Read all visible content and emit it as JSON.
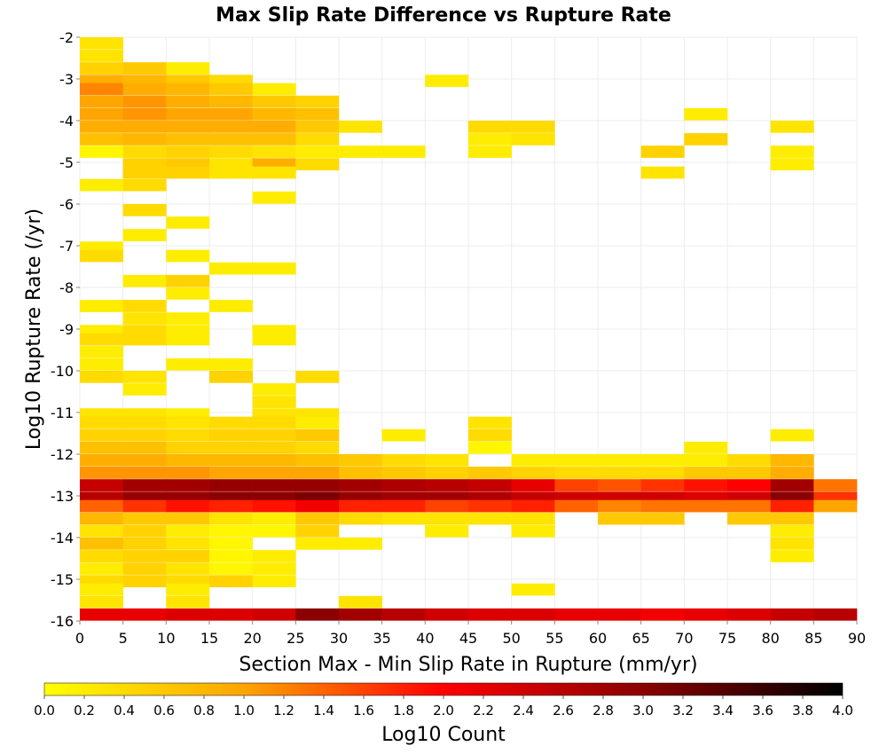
{
  "chart_data": {
    "type": "heatmap",
    "title": "Max Slip Rate Difference vs Rupture Rate",
    "xlabel": "Section Max - Min Slip Rate in Rupture (mm/yr)",
    "ylabel": "Log10 Rupture Rate (/yr)",
    "xlim": [
      0,
      90
    ],
    "ylim": [
      -16,
      -2
    ],
    "x_ticks": [
      "0",
      "5",
      "10",
      "15",
      "20",
      "25",
      "30",
      "35",
      "40",
      "45",
      "50",
      "55",
      "60",
      "65",
      "70",
      "75",
      "80",
      "85",
      "90"
    ],
    "y_ticks": [
      "-2",
      "-3",
      "-4",
      "-5",
      "-6",
      "-7",
      "-8",
      "-9",
      "-10",
      "-11",
      "-12",
      "-13",
      "-14",
      "-15",
      "-16"
    ],
    "bin_width_x": 5,
    "bin_height_y": 0.2857,
    "grid": true,
    "colorbar": {
      "label": "Log10 Count",
      "min": 0.0,
      "max": 4.0,
      "ticks": [
        "0.0",
        "0.2",
        "0.4",
        "0.6",
        "0.8",
        "1.0",
        "1.2",
        "1.4",
        "1.6",
        "1.8",
        "2.0",
        "2.2",
        "2.4",
        "2.6",
        "2.8",
        "3.0",
        "3.2",
        "3.4",
        "3.6",
        "3.8",
        "4.0"
      ],
      "colors": [
        "#ffff00",
        "#ffa500",
        "#ff0000",
        "#8b0000",
        "#000000"
      ]
    },
    "cells": [
      [
        0,
        -2.0,
        0.3
      ],
      [
        0,
        -2.3,
        0.3
      ],
      [
        0,
        -2.6,
        0.5
      ],
      [
        1,
        -2.6,
        0.6
      ],
      [
        2,
        -2.6,
        0.2
      ],
      [
        0,
        -2.9,
        0.9
      ],
      [
        1,
        -2.9,
        0.8
      ],
      [
        2,
        -2.9,
        0.6
      ],
      [
        3,
        -2.9,
        0.4
      ],
      [
        8,
        -2.9,
        0.2
      ],
      [
        0,
        -3.1,
        1.2
      ],
      [
        1,
        -3.1,
        0.9
      ],
      [
        2,
        -3.1,
        0.8
      ],
      [
        3,
        -3.1,
        0.6
      ],
      [
        4,
        -3.1,
        0.2
      ],
      [
        0,
        -3.4,
        1.0
      ],
      [
        1,
        -3.4,
        1.1
      ],
      [
        2,
        -3.4,
        0.9
      ],
      [
        3,
        -3.4,
        0.8
      ],
      [
        4,
        -3.4,
        0.6
      ],
      [
        5,
        -3.4,
        0.5
      ],
      [
        0,
        -3.7,
        1.0
      ],
      [
        1,
        -3.7,
        1.1
      ],
      [
        2,
        -3.7,
        1.0
      ],
      [
        3,
        -3.7,
        1.0
      ],
      [
        4,
        -3.7,
        0.8
      ],
      [
        5,
        -3.7,
        0.7
      ],
      [
        14,
        -3.7,
        0.2
      ],
      [
        0,
        -4.0,
        0.9
      ],
      [
        1,
        -4.0,
        0.9
      ],
      [
        2,
        -4.0,
        0.9
      ],
      [
        3,
        -4.0,
        0.9
      ],
      [
        4,
        -4.0,
        0.9
      ],
      [
        5,
        -4.0,
        0.6
      ],
      [
        6,
        -4.0,
        0.3
      ],
      [
        9,
        -4.0,
        0.4
      ],
      [
        10,
        -4.0,
        0.4
      ],
      [
        16,
        -4.0,
        0.3
      ],
      [
        0,
        -4.3,
        0.7
      ],
      [
        1,
        -4.3,
        0.8
      ],
      [
        2,
        -4.3,
        0.7
      ],
      [
        3,
        -4.3,
        0.7
      ],
      [
        4,
        -4.3,
        0.7
      ],
      [
        5,
        -4.3,
        0.4
      ],
      [
        9,
        -4.3,
        0.2
      ],
      [
        10,
        -4.3,
        0.3
      ],
      [
        14,
        -4.3,
        0.5
      ],
      [
        0,
        -4.6,
        0.1
      ],
      [
        1,
        -4.6,
        0.4
      ],
      [
        2,
        -4.6,
        0.5
      ],
      [
        3,
        -4.6,
        0.4
      ],
      [
        4,
        -4.6,
        0.3
      ],
      [
        5,
        -4.6,
        0.2
      ],
      [
        6,
        -4.6,
        0.2
      ],
      [
        7,
        -4.6,
        0.2
      ],
      [
        9,
        -4.6,
        0.2
      ],
      [
        13,
        -4.6,
        0.5
      ],
      [
        16,
        -4.6,
        0.2
      ],
      [
        1,
        -4.9,
        0.5
      ],
      [
        2,
        -4.9,
        0.6
      ],
      [
        3,
        -4.9,
        0.3
      ],
      [
        4,
        -4.9,
        0.9
      ],
      [
        5,
        -4.9,
        0.4
      ],
      [
        16,
        -4.9,
        0.2
      ],
      [
        1,
        -5.1,
        0.5
      ],
      [
        2,
        -5.1,
        0.5
      ],
      [
        3,
        -5.1,
        0.3
      ],
      [
        4,
        -5.1,
        0.3
      ],
      [
        13,
        -5.1,
        0.3
      ],
      [
        0,
        -5.4,
        0.2
      ],
      [
        1,
        -5.4,
        0.4
      ],
      [
        4,
        -5.7,
        0.2
      ],
      [
        1,
        -6.0,
        0.4
      ],
      [
        2,
        -6.3,
        0.2
      ],
      [
        1,
        -6.6,
        0.2
      ],
      [
        0,
        -6.9,
        0.2
      ],
      [
        0,
        -7.1,
        0.4
      ],
      [
        2,
        -7.1,
        0.2
      ],
      [
        3,
        -7.4,
        0.2
      ],
      [
        4,
        -7.4,
        0.2
      ],
      [
        1,
        -7.7,
        0.2
      ],
      [
        2,
        -7.7,
        0.5
      ],
      [
        2,
        -8.0,
        0.2
      ],
      [
        0,
        -8.3,
        0.2
      ],
      [
        1,
        -8.3,
        0.4
      ],
      [
        3,
        -8.3,
        0.2
      ],
      [
        1,
        -8.6,
        0.3
      ],
      [
        2,
        -8.6,
        0.2
      ],
      [
        0,
        -8.9,
        0.2
      ],
      [
        1,
        -8.9,
        0.4
      ],
      [
        2,
        -8.9,
        0.2
      ],
      [
        4,
        -8.9,
        0.2
      ],
      [
        0,
        -9.1,
        0.4
      ],
      [
        1,
        -9.1,
        0.4
      ],
      [
        2,
        -9.1,
        0.2
      ],
      [
        4,
        -9.1,
        0.2
      ],
      [
        0,
        -9.4,
        0.2
      ],
      [
        0,
        -9.7,
        0.2
      ],
      [
        2,
        -9.7,
        0.2
      ],
      [
        3,
        -9.7,
        0.2
      ],
      [
        0,
        -10.0,
        0.4
      ],
      [
        1,
        -10.0,
        0.3
      ],
      [
        3,
        -10.0,
        0.5
      ],
      [
        5,
        -10.0,
        0.4
      ],
      [
        1,
        -10.3,
        0.2
      ],
      [
        4,
        -10.3,
        0.2
      ],
      [
        4,
        -10.6,
        0.3
      ],
      [
        0,
        -10.9,
        0.3
      ],
      [
        1,
        -10.9,
        0.3
      ],
      [
        2,
        -10.9,
        0.2
      ],
      [
        4,
        -10.9,
        0.3
      ],
      [
        5,
        -10.9,
        0.3
      ],
      [
        0,
        -11.1,
        0.4
      ],
      [
        1,
        -11.1,
        0.4
      ],
      [
        2,
        -11.1,
        0.3
      ],
      [
        3,
        -11.1,
        0.4
      ],
      [
        4,
        -11.1,
        0.4
      ],
      [
        5,
        -11.1,
        0.2
      ],
      [
        9,
        -11.1,
        0.3
      ],
      [
        0,
        -11.4,
        0.5
      ],
      [
        1,
        -11.4,
        0.5
      ],
      [
        2,
        -11.4,
        0.4
      ],
      [
        3,
        -11.4,
        0.5
      ],
      [
        4,
        -11.4,
        0.5
      ],
      [
        5,
        -11.4,
        0.6
      ],
      [
        7,
        -11.4,
        0.2
      ],
      [
        9,
        -11.4,
        0.4
      ],
      [
        16,
        -11.4,
        0.2
      ],
      [
        0,
        -11.7,
        0.7
      ],
      [
        1,
        -11.7,
        0.7
      ],
      [
        2,
        -11.7,
        0.5
      ],
      [
        3,
        -11.7,
        0.5
      ],
      [
        4,
        -11.7,
        0.5
      ],
      [
        5,
        -11.7,
        0.4
      ],
      [
        9,
        -11.7,
        0.1
      ],
      [
        14,
        -11.7,
        0.2
      ],
      [
        0,
        -12.0,
        0.9
      ],
      [
        1,
        -12.0,
        0.9
      ],
      [
        2,
        -12.0,
        0.8
      ],
      [
        3,
        -12.0,
        0.8
      ],
      [
        4,
        -12.0,
        0.8
      ],
      [
        5,
        -12.0,
        0.7
      ],
      [
        6,
        -12.0,
        0.6
      ],
      [
        7,
        -12.0,
        0.4
      ],
      [
        8,
        -12.0,
        0.3
      ],
      [
        10,
        -12.0,
        0.2
      ],
      [
        11,
        -12.0,
        0.2
      ],
      [
        12,
        -12.0,
        0.2
      ],
      [
        13,
        -12.0,
        0.2
      ],
      [
        14,
        -12.0,
        0.2
      ],
      [
        15,
        -12.0,
        0.4
      ],
      [
        16,
        -12.0,
        0.8
      ],
      [
        0,
        -12.3,
        1.1
      ],
      [
        1,
        -12.3,
        1.1
      ],
      [
        2,
        -12.3,
        1.1
      ],
      [
        3,
        -12.3,
        1.0
      ],
      [
        4,
        -12.3,
        1.0
      ],
      [
        5,
        -12.3,
        1.0
      ],
      [
        6,
        -12.3,
        0.7
      ],
      [
        7,
        -12.3,
        0.6
      ],
      [
        8,
        -12.3,
        0.5
      ],
      [
        9,
        -12.3,
        0.6
      ],
      [
        10,
        -12.3,
        0.5
      ],
      [
        11,
        -12.3,
        0.4
      ],
      [
        12,
        -12.3,
        0.4
      ],
      [
        13,
        -12.3,
        0.4
      ],
      [
        14,
        -12.3,
        0.6
      ],
      [
        15,
        -12.3,
        0.6
      ],
      [
        16,
        -12.3,
        0.9
      ],
      [
        0,
        -12.6,
        2.5
      ],
      [
        1,
        -12.6,
        2.8
      ],
      [
        2,
        -12.6,
        2.8
      ],
      [
        3,
        -12.6,
        2.9
      ],
      [
        4,
        -12.6,
        2.9
      ],
      [
        5,
        -12.6,
        2.9
      ],
      [
        6,
        -12.6,
        2.8
      ],
      [
        7,
        -12.6,
        2.7
      ],
      [
        8,
        -12.6,
        2.6
      ],
      [
        9,
        -12.6,
        2.5
      ],
      [
        10,
        -12.6,
        2.2
      ],
      [
        11,
        -12.6,
        1.6
      ],
      [
        12,
        -12.6,
        1.5
      ],
      [
        13,
        -12.6,
        1.7
      ],
      [
        14,
        -12.6,
        1.9
      ],
      [
        15,
        -12.6,
        2.0
      ],
      [
        16,
        -12.6,
        2.8
      ],
      [
        17,
        -12.6,
        1.3
      ],
      [
        0,
        -12.9,
        2.6
      ],
      [
        1,
        -12.9,
        2.9
      ],
      [
        2,
        -12.9,
        2.9
      ],
      [
        3,
        -12.9,
        3.0
      ],
      [
        4,
        -12.9,
        3.0
      ],
      [
        5,
        -12.9,
        3.1
      ],
      [
        6,
        -12.9,
        2.9
      ],
      [
        7,
        -12.9,
        2.8
      ],
      [
        8,
        -12.9,
        2.8
      ],
      [
        9,
        -12.9,
        2.7
      ],
      [
        10,
        -12.9,
        2.5
      ],
      [
        11,
        -12.9,
        2.4
      ],
      [
        12,
        -12.9,
        2.4
      ],
      [
        13,
        -12.9,
        2.4
      ],
      [
        14,
        -12.9,
        2.3
      ],
      [
        15,
        -12.9,
        2.4
      ],
      [
        16,
        -12.9,
        3.0
      ],
      [
        17,
        -12.9,
        1.7
      ],
      [
        0,
        -13.1,
        1.4
      ],
      [
        1,
        -13.1,
        1.7
      ],
      [
        2,
        -13.1,
        1.9
      ],
      [
        3,
        -13.1,
        1.8
      ],
      [
        4,
        -13.1,
        1.9
      ],
      [
        5,
        -13.1,
        2.1
      ],
      [
        6,
        -13.1,
        1.8
      ],
      [
        7,
        -13.1,
        1.8
      ],
      [
        8,
        -13.1,
        1.6
      ],
      [
        9,
        -13.1,
        1.7
      ],
      [
        10,
        -13.1,
        1.8
      ],
      [
        11,
        -13.1,
        1.4
      ],
      [
        12,
        -13.1,
        1.2
      ],
      [
        13,
        -13.1,
        1.3
      ],
      [
        14,
        -13.1,
        1.3
      ],
      [
        15,
        -13.1,
        1.3
      ],
      [
        16,
        -13.1,
        1.8
      ],
      [
        17,
        -13.1,
        1.0
      ],
      [
        0,
        -13.4,
        0.8
      ],
      [
        1,
        -13.4,
        0.6
      ],
      [
        2,
        -13.4,
        0.6
      ],
      [
        3,
        -13.4,
        0.3
      ],
      [
        4,
        -13.4,
        0.2
      ],
      [
        5,
        -13.4,
        0.6
      ],
      [
        6,
        -13.4,
        0.4
      ],
      [
        7,
        -13.4,
        0.3
      ],
      [
        8,
        -13.4,
        0.3
      ],
      [
        9,
        -13.4,
        0.3
      ],
      [
        10,
        -13.4,
        0.3
      ],
      [
        12,
        -13.4,
        0.6
      ],
      [
        13,
        -13.4,
        0.6
      ],
      [
        15,
        -13.4,
        0.6
      ],
      [
        16,
        -13.4,
        0.6
      ],
      [
        0,
        -13.7,
        0.3
      ],
      [
        1,
        -13.7,
        0.5
      ],
      [
        2,
        -13.7,
        0.2
      ],
      [
        3,
        -13.7,
        0.1
      ],
      [
        4,
        -13.7,
        0.1
      ],
      [
        5,
        -13.7,
        0.5
      ],
      [
        8,
        -13.7,
        0.2
      ],
      [
        10,
        -13.7,
        0.2
      ],
      [
        16,
        -13.7,
        0.2
      ],
      [
        0,
        -14.0,
        0.7
      ],
      [
        1,
        -14.0,
        0.5
      ],
      [
        2,
        -14.0,
        0.3
      ],
      [
        3,
        -14.0,
        0.1
      ],
      [
        5,
        -14.0,
        0.2
      ],
      [
        6,
        -14.0,
        0.2
      ],
      [
        16,
        -14.0,
        0.3
      ],
      [
        0,
        -14.3,
        0.4
      ],
      [
        1,
        -14.3,
        0.5
      ],
      [
        2,
        -14.3,
        0.5
      ],
      [
        3,
        -14.3,
        0.1
      ],
      [
        4,
        -14.3,
        0.2
      ],
      [
        16,
        -14.3,
        0.2
      ],
      [
        0,
        -14.6,
        0.2
      ],
      [
        1,
        -14.6,
        0.5
      ],
      [
        2,
        -14.6,
        0.3
      ],
      [
        3,
        -14.6,
        0.1
      ],
      [
        4,
        -14.6,
        0.2
      ],
      [
        0,
        -14.9,
        0.4
      ],
      [
        1,
        -14.9,
        0.5
      ],
      [
        2,
        -14.9,
        0.4
      ],
      [
        3,
        -14.9,
        0.5
      ],
      [
        4,
        -14.9,
        0.2
      ],
      [
        0,
        -15.1,
        0.2
      ],
      [
        2,
        -15.1,
        0.2
      ],
      [
        10,
        -15.1,
        0.2
      ],
      [
        0,
        -15.4,
        0.3
      ],
      [
        2,
        -15.4,
        0.3
      ],
      [
        6,
        -15.4,
        0.3
      ],
      [
        0,
        -15.7,
        2.2
      ],
      [
        1,
        -15.7,
        2.2
      ],
      [
        2,
        -15.7,
        2.3
      ],
      [
        3,
        -15.7,
        2.3
      ],
      [
        4,
        -15.7,
        2.4
      ],
      [
        5,
        -15.7,
        3.0
      ],
      [
        6,
        -15.7,
        2.8
      ],
      [
        7,
        -15.7,
        2.6
      ],
      [
        8,
        -15.7,
        2.4
      ],
      [
        9,
        -15.7,
        2.3
      ],
      [
        10,
        -15.7,
        2.3
      ],
      [
        11,
        -15.7,
        2.2
      ],
      [
        12,
        -15.7,
        2.2
      ],
      [
        13,
        -15.7,
        2.1
      ],
      [
        14,
        -15.7,
        2.2
      ],
      [
        15,
        -15.7,
        2.3
      ],
      [
        16,
        -15.7,
        2.5
      ],
      [
        17,
        -15.7,
        2.6
      ]
    ]
  }
}
